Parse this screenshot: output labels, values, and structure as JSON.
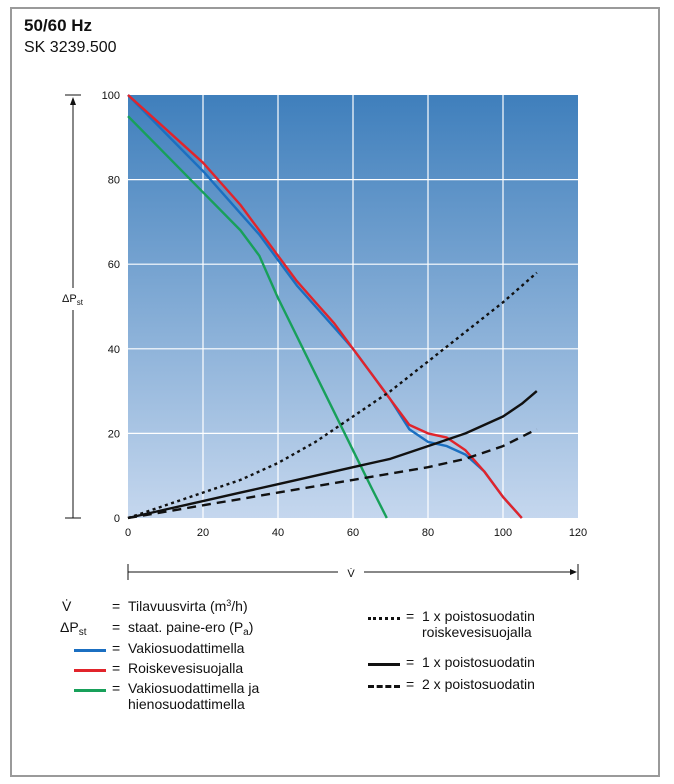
{
  "header": {
    "title": "50/60 Hz",
    "subtitle": "SK 3239.500"
  },
  "colors": {
    "bg_top": "#3f7fbc",
    "bg_bottom": "#c5d7ee",
    "blue": "#1b6fc1",
    "red": "#e1242b",
    "green": "#18a05a",
    "black": "#111111"
  },
  "chart_data": {
    "type": "line",
    "title": "",
    "xlabel": "V̇",
    "ylabel": "ΔPst",
    "xlim": [
      0,
      120
    ],
    "ylim": [
      0,
      100
    ],
    "x_ticks": [
      0,
      20,
      40,
      60,
      80,
      100,
      120
    ],
    "y_ticks": [
      0,
      20,
      40,
      60,
      80,
      100
    ],
    "grid": true,
    "legend": "below",
    "series": [
      {
        "name": "Vakiosuodattimella",
        "color": "blue",
        "style": "solid",
        "x": [
          0,
          10,
          20,
          30,
          35,
          40,
          45,
          50,
          55,
          60,
          65,
          70,
          75,
          80,
          85,
          90,
          95,
          100,
          105
        ],
        "y": [
          100,
          91,
          82,
          72,
          67,
          61,
          55,
          50,
          45,
          40,
          34,
          28,
          21,
          18,
          17,
          15,
          11,
          5,
          0
        ]
      },
      {
        "name": "Roiskevesisuojalla",
        "color": "red",
        "style": "solid",
        "x": [
          0,
          10,
          20,
          30,
          35,
          40,
          45,
          50,
          55,
          60,
          65,
          70,
          75,
          80,
          85,
          90,
          95,
          100,
          105
        ],
        "y": [
          100,
          92,
          84,
          74,
          68,
          62,
          56,
          51,
          46,
          40,
          34,
          28,
          22,
          20,
          19,
          16,
          11,
          5,
          0
        ]
      },
      {
        "name": "Vakiosuodattimella ja hienosuodattimella",
        "color": "green",
        "style": "solid",
        "x": [
          0,
          10,
          20,
          30,
          35,
          40,
          45,
          50,
          55,
          60,
          65,
          69
        ],
        "y": [
          95,
          86,
          77,
          68,
          62,
          52,
          43,
          34,
          25,
          16,
          7,
          0
        ]
      },
      {
        "name": "1 x poistosuodatin roiskevesisuojalla",
        "color": "black",
        "style": "dotted",
        "x": [
          0,
          10,
          20,
          30,
          40,
          50,
          60,
          70,
          80,
          90,
          100,
          109
        ],
        "y": [
          0,
          3,
          6,
          9,
          13,
          18,
          24,
          30,
          37,
          44,
          51,
          58
        ]
      },
      {
        "name": "1 x poistosuodatin",
        "color": "black",
        "style": "solid",
        "x": [
          0,
          10,
          20,
          30,
          40,
          50,
          60,
          70,
          80,
          90,
          100,
          105,
          109
        ],
        "y": [
          0,
          2,
          4,
          6,
          8,
          10,
          12,
          14,
          17,
          20,
          24,
          27,
          30
        ]
      },
      {
        "name": "2 x poistosuodatin",
        "color": "black",
        "style": "dashed",
        "x": [
          0,
          10,
          20,
          30,
          40,
          50,
          60,
          70,
          80,
          90,
          100,
          109
        ],
        "y": [
          0,
          1.5,
          3,
          4.5,
          6,
          7.5,
          9,
          10.5,
          12,
          14,
          17,
          21
        ]
      }
    ]
  },
  "legend": {
    "definitions": [
      {
        "symbol": "V̇",
        "equals": "=",
        "text": "Tilavuusvirta (m",
        "sup": "3",
        "text_after": "/h)"
      },
      {
        "symbol": "ΔP",
        "symbol_sub": "st",
        "equals": "=",
        "text": "staat. paine-ero (P",
        "sub": "a",
        "text_after": ")"
      }
    ],
    "left_items": [
      {
        "equals": "=",
        "label": "Vakiosuodattimella",
        "color": "blue"
      },
      {
        "equals": "=",
        "label": "Roiskevesisuojalla",
        "color": "red"
      },
      {
        "equals": "=",
        "label": "Vakiosuodattimella ja",
        "label2": "hienosuodattimella",
        "color": "green"
      }
    ],
    "right_items": [
      {
        "equals": "=",
        "label": "1 x poistosuodatin",
        "label2": "roiskevesisuojalla",
        "style": "dotted"
      },
      {
        "equals": "=",
        "label": "1 x poistosuodatin",
        "style": "solid"
      },
      {
        "equals": "=",
        "label": "2 x poistosuodatin",
        "style": "dashed"
      }
    ]
  }
}
